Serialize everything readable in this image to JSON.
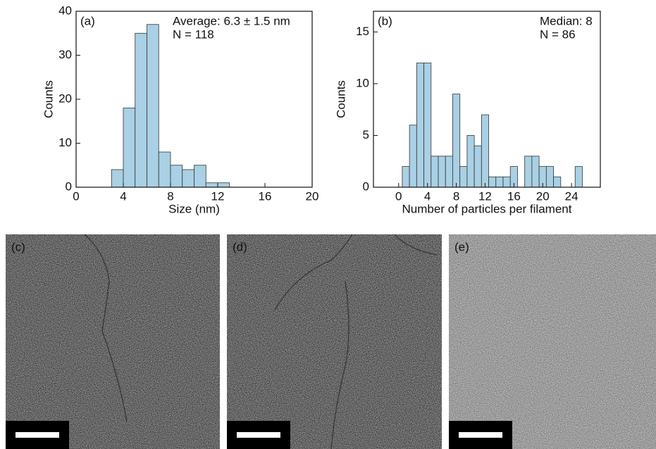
{
  "chart_data": [
    {
      "type": "histogram",
      "color": "#a9d0e4",
      "bins": [
        3,
        4,
        5,
        6,
        7,
        8,
        9,
        10,
        11,
        12,
        13
      ],
      "values": [
        4,
        18,
        35,
        37,
        8,
        5,
        4,
        5,
        1,
        1
      ],
      "xlim": [
        0,
        20
      ],
      "xticks": [
        0,
        4,
        8,
        12,
        16,
        20
      ],
      "ylim": [
        0,
        40
      ],
      "yticks": [
        0,
        10,
        20,
        30,
        40
      ],
      "x_label": "Size (nm)",
      "y_label": "Counts",
      "annotations": [
        "(a)",
        "Average: 6.3 ± 1.5 nm",
        "N = 118"
      ]
    },
    {
      "type": "histogram",
      "color": "#a9d0e4",
      "bins": [
        0.5,
        1.5,
        2.5,
        3.5,
        4.5,
        5.5,
        6.5,
        7.5,
        8.5,
        9.5,
        10.5,
        11.5,
        12.5,
        13.5,
        14.5,
        15.5,
        16.5,
        17.5,
        18.5,
        19.5,
        20.5,
        21.5,
        22.5,
        23.5,
        24.5,
        25.5
      ],
      "values": [
        2,
        6,
        12,
        12,
        3,
        3,
        3,
        9,
        2,
        5,
        4,
        7,
        1,
        1,
        1,
        2,
        0,
        3,
        3,
        2,
        2,
        1,
        0,
        0,
        2
      ],
      "xlim": [
        -3.5,
        28
      ],
      "xticks": [
        0,
        4,
        8,
        12,
        16,
        20,
        24
      ],
      "ylim": [
        0,
        17
      ],
      "yticks": [
        0,
        5,
        10,
        15
      ],
      "x_label": "Number of particles per filament",
      "y_label": "Counts",
      "annotations": [
        "(b)",
        "Median: 8",
        "N = 86"
      ]
    }
  ],
  "panels": [
    {
      "label": "(c)"
    },
    {
      "label": "(d)"
    },
    {
      "label": "(e)"
    }
  ]
}
